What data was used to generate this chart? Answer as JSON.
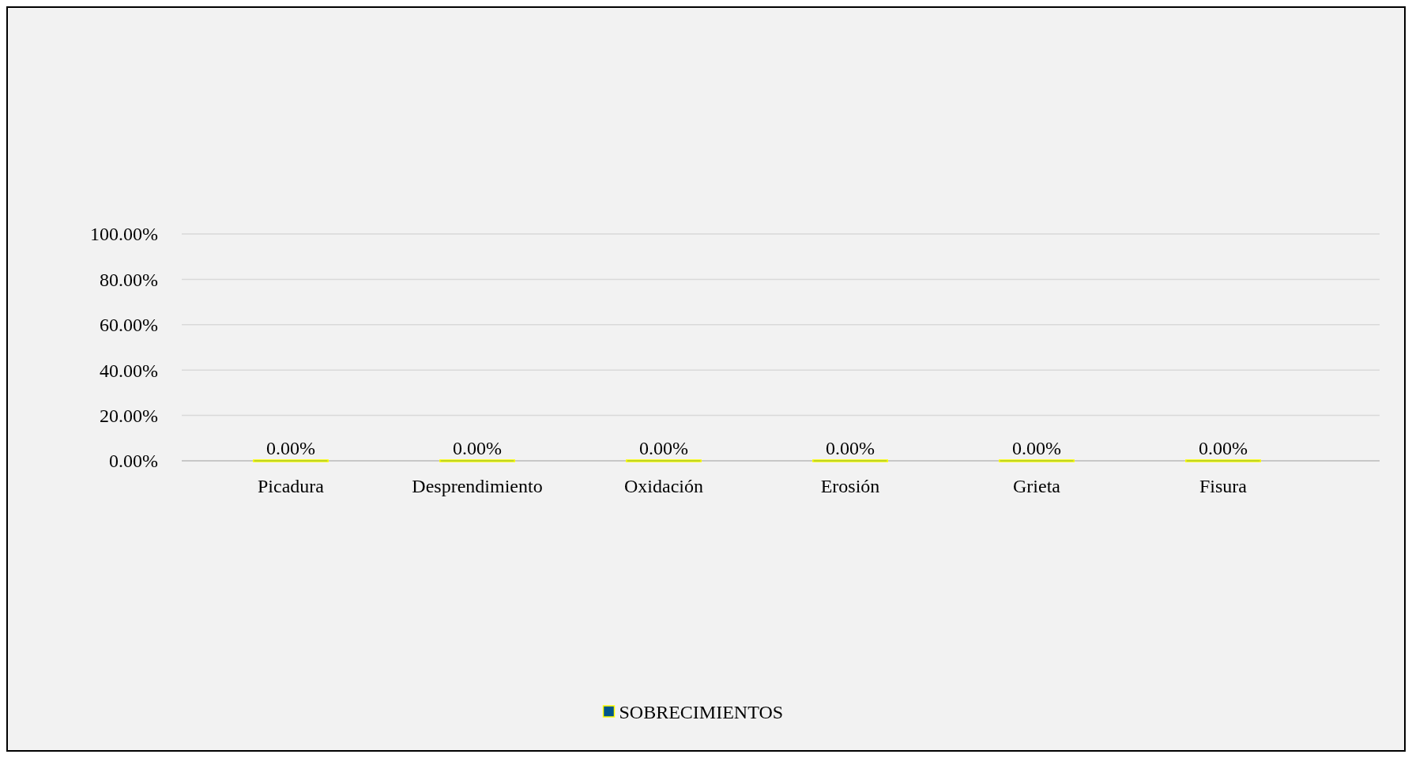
{
  "chart_data": {
    "type": "bar",
    "categories": [
      "Picadura",
      "Desprendimiento",
      "Oxidación",
      "Erosión",
      "Grieta",
      "Fisura"
    ],
    "series": [
      {
        "name": "SOBRECIMIENTOS",
        "color": "#00558c",
        "values": [
          0,
          0,
          0,
          0,
          0,
          0
        ],
        "value_labels": [
          "0.00%",
          "0.00%",
          "0.00%",
          "0.00%",
          "0.00%",
          "0.00%"
        ]
      }
    ],
    "ylim": [
      0,
      100
    ],
    "yticks": [
      {
        "value": 0,
        "label": "0.00%"
      },
      {
        "value": 20,
        "label": "20.00%"
      },
      {
        "value": 40,
        "label": "40.00%"
      },
      {
        "value": 60,
        "label": "60.00%"
      },
      {
        "value": 80,
        "label": "80.00%"
      },
      {
        "value": 100,
        "label": "100.00%"
      }
    ],
    "grid": "y",
    "legend": "bottom"
  }
}
